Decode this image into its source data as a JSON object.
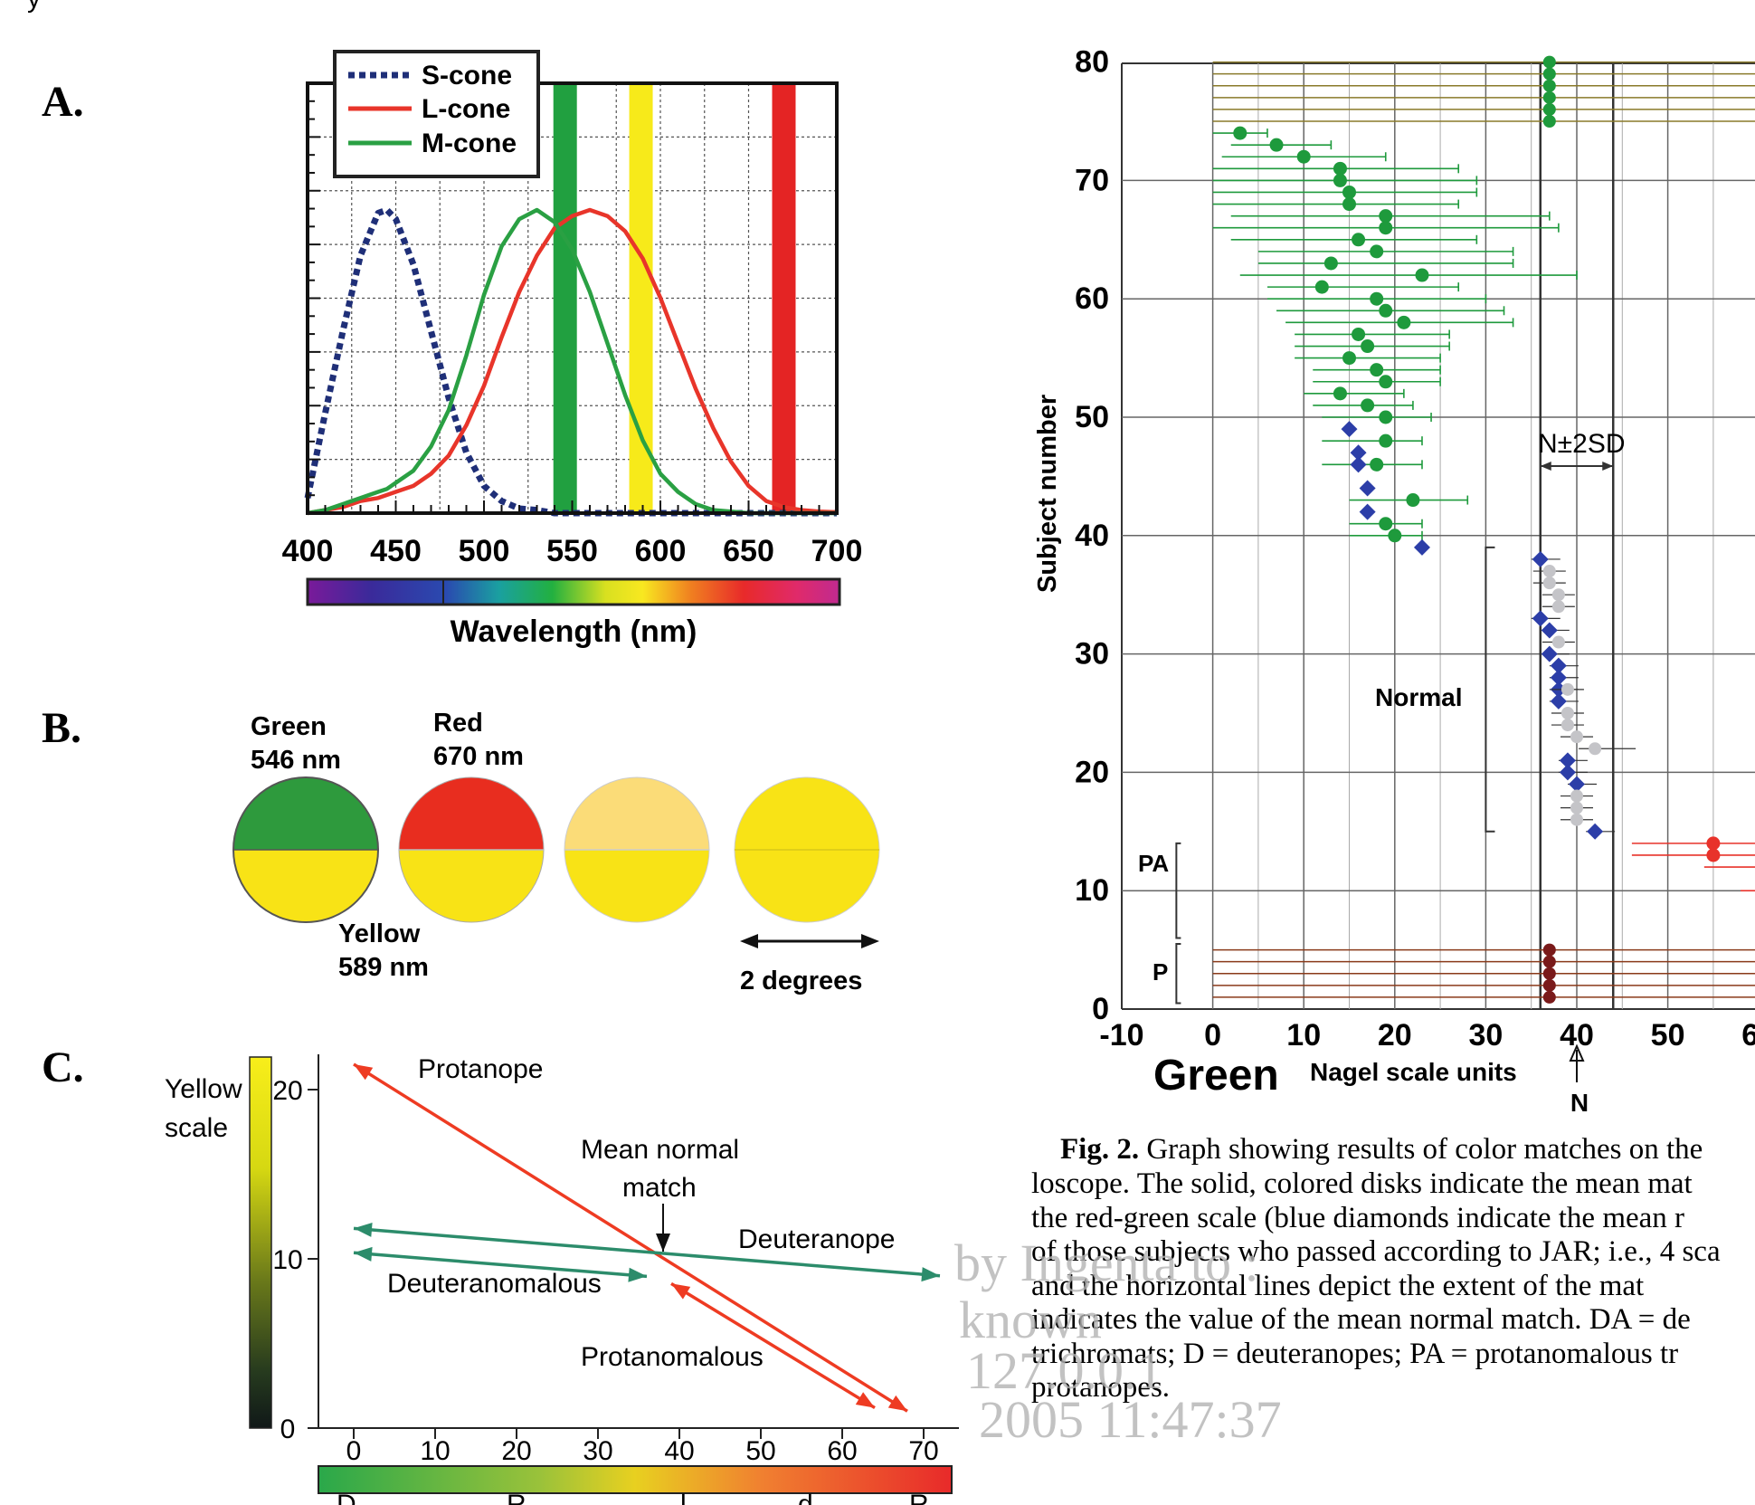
{
  "page": {
    "top_fragment": "y"
  },
  "panelA": {
    "letter": "A.",
    "xlabel": "Wavelength (nm)",
    "legend": [
      "S-cone",
      "L-cone",
      "M-cone"
    ],
    "colors": {
      "s": "#1f2f78",
      "l": "#e8352a",
      "m": "#2aa043",
      "green_bar": "#21a040",
      "yellow_bar": "#f7ea1a",
      "red_bar": "#e42424"
    }
  },
  "panelB": {
    "letter": "B.",
    "green": {
      "name": "Green",
      "nm": "546 nm"
    },
    "red": {
      "name": "Red",
      "nm": "670 nm"
    },
    "yellow": {
      "name": "Yellow",
      "nm": "589 nm"
    },
    "scale_label": "2 degrees",
    "colors": {
      "green": "#2e9a3d",
      "red": "#e82d1f",
      "yellow": "#f8e316",
      "light": "#fbdc78"
    }
  },
  "panelC": {
    "letter": "C.",
    "yellow_scale_l1": "Yellow",
    "yellow_scale_l2": "scale",
    "protanope": "Protanope",
    "mean_l1": "Mean normal",
    "mean_l2": "match",
    "deuteranope": "Deuteranope",
    "deuteranomalous": "Deuteranomalous",
    "protanomalous": "Protanomalous",
    "bottom_fragments": [
      "D",
      "R",
      "l",
      "d",
      "R"
    ],
    "colors": {
      "red": "#ee3b22",
      "teal": "#2c8c6b"
    }
  },
  "fig2": {
    "ylabel": "Subject number",
    "xlabel_green": "Green",
    "xlabel": "Nagel scale units",
    "normal": "Normal",
    "sd_label": "N±2SD",
    "N": "N",
    "PA": "PA",
    "P": "P",
    "colors": {
      "green": "#1e9a3c",
      "blue": "#2c3ea8",
      "red": "#e8322a",
      "gray": "#c4c4c8",
      "dark_red": "#7a1a1a"
    }
  },
  "caption": {
    "lines": [
      [
        "Fig. 2.",
        " Graph showing results of color matches on the"
      ],
      [
        "",
        "loscope. The solid, colored disks indicate the mean mat"
      ],
      [
        "",
        "the red-green scale (blue diamonds indicate the mean r"
      ],
      [
        "",
        "of those subjects who passed according to JAR; i.e., 4 sca"
      ],
      [
        "",
        "and the horizontal lines depict the extent of the mat"
      ],
      [
        "",
        "indicates the value of the mean normal match. DA = de"
      ],
      [
        "",
        "trichromats; D = deuteranopes; PA = protanomalous tr"
      ],
      [
        "",
        "protanopes."
      ]
    ]
  },
  "watermark": [
    "by Ingenta to :",
    "known",
    "127.0.0.1",
    "2005 11:47:37"
  ],
  "chart_data": [
    {
      "type": "line",
      "title": "",
      "xlabel": "Wavelength (nm)",
      "ylabel": "",
      "xlim": [
        400,
        700
      ],
      "ylim": [
        0,
        1
      ],
      "x": [
        400,
        410,
        420,
        430,
        440,
        445,
        450,
        460,
        470,
        480,
        490,
        500,
        510,
        520,
        530,
        540,
        550,
        560,
        570,
        580,
        590,
        600,
        610,
        620,
        630,
        640,
        650,
        660,
        670,
        680,
        690,
        700
      ],
      "series": [
        {
          "name": "S-cone",
          "values": [
            0.05,
            0.33,
            0.6,
            0.85,
            0.99,
            1.0,
            0.97,
            0.82,
            0.6,
            0.38,
            0.2,
            0.09,
            0.04,
            0.015,
            0.01,
            0.0,
            0.0,
            0.0,
            0.0,
            0.0,
            0.0,
            0.0,
            0.0,
            0.0,
            0.0,
            0.0,
            0.0,
            0.0,
            0.0,
            0.0,
            0.0,
            0.0
          ]
        },
        {
          "name": "L-cone",
          "values": [
            0.0,
            0.01,
            0.02,
            0.04,
            0.05,
            0.06,
            0.07,
            0.09,
            0.13,
            0.19,
            0.29,
            0.42,
            0.58,
            0.73,
            0.85,
            0.94,
            0.98,
            1.0,
            0.98,
            0.93,
            0.84,
            0.71,
            0.56,
            0.41,
            0.28,
            0.17,
            0.09,
            0.04,
            0.02,
            0.01,
            0.005,
            0.003
          ]
        },
        {
          "name": "M-cone",
          "values": [
            0.0,
            0.01,
            0.03,
            0.05,
            0.07,
            0.08,
            0.1,
            0.14,
            0.22,
            0.34,
            0.52,
            0.72,
            0.88,
            0.97,
            1.0,
            0.96,
            0.87,
            0.73,
            0.56,
            0.39,
            0.24,
            0.13,
            0.07,
            0.03,
            0.01,
            0.005,
            0.0,
            0.0,
            0.0,
            0.0,
            0.0,
            0.0
          ]
        }
      ],
      "bands_nm": [
        546,
        589,
        670
      ],
      "xticks": [
        400,
        450,
        500,
        550,
        600,
        650,
        700
      ]
    },
    {
      "type": "line",
      "title": "",
      "xlabel": "",
      "ylabel": "Yellow scale",
      "xlim": [
        -2,
        73
      ],
      "ylim": [
        0,
        22
      ],
      "xticks": [
        0,
        10,
        20,
        30,
        40,
        50,
        60,
        70
      ],
      "yticks": [
        0,
        10,
        20
      ],
      "mean_normal_match": {
        "x": 38,
        "y": 10
      },
      "lines": [
        {
          "label": "Protanope",
          "from": [
            0,
            21.5
          ],
          "to": [
            68,
            1
          ]
        },
        {
          "label": "Deuteranope",
          "from": [
            0,
            11.8
          ],
          "to": [
            72,
            9
          ]
        },
        {
          "label": "Deuteranomalous",
          "from": [
            0,
            11
          ],
          "to": [
            36,
            9.5
          ]
        },
        {
          "label": "Protanomalous",
          "from": [
            39,
            9.5
          ],
          "to": [
            64,
            1.2
          ]
        }
      ]
    },
    {
      "type": "scatter",
      "title": "",
      "xlabel": "Nagel scale units",
      "ylabel": "Subject number",
      "xlim": [
        -10,
        60
      ],
      "ylim": [
        0,
        80
      ],
      "xticks": [
        -10,
        0,
        10,
        20,
        30,
        40,
        50,
        60
      ],
      "yticks": [
        0,
        10,
        20,
        30,
        40,
        50,
        60,
        70,
        80
      ],
      "N_mean": 40,
      "sd_range": [
        36,
        44
      ],
      "normal_bracket": [
        15,
        39
      ],
      "groups": [
        {
          "name": "deuteranopes",
          "marker": "green-disk",
          "y": [
            75,
            76,
            77,
            78,
            79,
            80
          ],
          "x": [
            37,
            37,
            37,
            37,
            37,
            37
          ],
          "range": [
            0,
            60
          ]
        },
        {
          "name": "deuteranomalous",
          "marker": "green-disk",
          "points": [
            [
              3,
              74,
              0,
              6
            ],
            [
              7,
              73,
              2,
              13
            ],
            [
              10,
              72,
              1,
              19
            ],
            [
              14,
              71,
              0,
              27
            ],
            [
              14,
              70,
              0,
              29
            ],
            [
              15,
              69,
              0,
              29
            ],
            [
              15,
              68,
              0,
              27
            ],
            [
              19,
              67,
              2,
              37
            ],
            [
              19,
              66,
              0,
              38
            ],
            [
              16,
              65,
              2,
              29
            ],
            [
              18,
              64,
              5,
              33
            ],
            [
              13,
              63,
              5,
              33
            ],
            [
              23,
              62,
              3,
              40
            ],
            [
              12,
              61,
              6,
              27
            ],
            [
              18,
              60,
              6,
              30
            ],
            [
              19,
              59,
              7,
              32
            ],
            [
              21,
              58,
              8,
              33
            ],
            [
              16,
              57,
              9,
              26
            ],
            [
              17,
              56,
              9,
              26
            ],
            [
              15,
              55,
              9,
              25
            ],
            [
              18,
              54,
              11,
              25
            ],
            [
              19,
              53,
              11,
              25
            ],
            [
              14,
              52,
              10,
              21
            ],
            [
              17,
              51,
              11,
              22
            ],
            [
              19,
              50,
              12,
              24
            ],
            [
              19,
              48,
              12,
              23
            ],
            [
              18,
              46,
              12,
              23
            ],
            [
              22,
              43,
              15,
              28
            ],
            [
              19,
              41,
              15,
              23
            ],
            [
              20,
              40,
              15,
              23
            ]
          ]
        },
        {
          "name": "JAR-pass",
          "marker": "blue-diamond",
          "points": [
            [
              15,
              49
            ],
            [
              16,
              47
            ],
            [
              16,
              46
            ],
            [
              17,
              44
            ],
            [
              17,
              42
            ],
            [
              23,
              39
            ]
          ]
        },
        {
          "name": "normal",
          "marker": "blue-diamond",
          "points": [
            [
              36,
              38
            ],
            [
              36,
              33
            ],
            [
              37,
              32
            ],
            [
              37,
              30
            ],
            [
              38,
              29
            ],
            [
              38,
              28
            ],
            [
              38,
              27
            ],
            [
              38,
              26
            ],
            [
              39,
              21
            ],
            [
              39,
              20
            ],
            [
              40,
              19
            ],
            [
              42,
              15
            ]
          ]
        },
        {
          "name": "normal-alt",
          "marker": "gray-disk",
          "points": [
            [
              37,
              37
            ],
            [
              37,
              36
            ],
            [
              38,
              35
            ],
            [
              38,
              34
            ],
            [
              38,
              31
            ],
            [
              39,
              27
            ],
            [
              39,
              25
            ],
            [
              39,
              24
            ],
            [
              40,
              23
            ],
            [
              42,
              22
            ],
            [
              40,
              18
            ],
            [
              40,
              17
            ],
            [
              40,
              16
            ]
          ]
        },
        {
          "name": "protanomalous",
          "marker": "red-disk",
          "points": [
            [
              55,
              14
            ],
            [
              55,
              13
            ]
          ]
        },
        {
          "name": "protanopes",
          "marker": "dark-red-disk",
          "y": [
            1,
            2,
            3,
            4,
            5
          ],
          "x": [
            37,
            37,
            37,
            37,
            37
          ]
        }
      ]
    }
  ]
}
